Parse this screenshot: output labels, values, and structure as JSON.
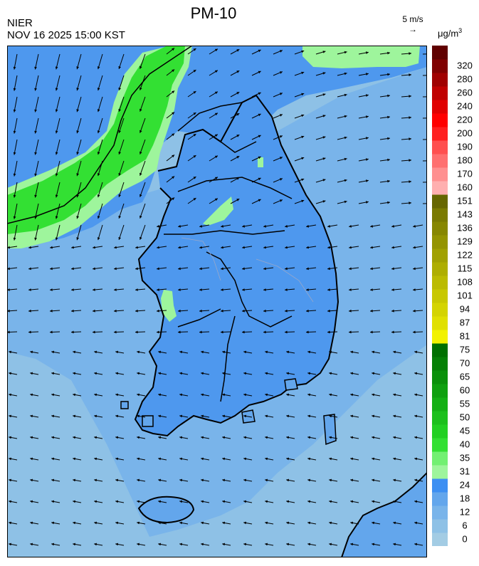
{
  "header": {
    "title": "PM-10",
    "agency": "NIER",
    "datetime": "NOV 16 2025 15:00 KST",
    "wind_scale_label": "5 m/s",
    "wind_scale_icon": "right-arrow-icon",
    "unit_base": "μg/m",
    "unit_exp": "3"
  },
  "legend": {
    "bins": [
      {
        "label": "0",
        "color": "#a3cce4"
      },
      {
        "label": "6",
        "color": "#8ec1e6"
      },
      {
        "label": "12",
        "color": "#79b4ea"
      },
      {
        "label": "18",
        "color": "#63a6ec"
      },
      {
        "label": "24",
        "color": "#3d8ff2"
      },
      {
        "label": "31",
        "color": "#9ef59c"
      },
      {
        "label": "35",
        "color": "#72f072"
      },
      {
        "label": "40",
        "color": "#33e033"
      },
      {
        "label": "45",
        "color": "#22d022"
      },
      {
        "label": "50",
        "color": "#1cc01c"
      },
      {
        "label": "55",
        "color": "#14b014"
      },
      {
        "label": "60",
        "color": "#0fa00f"
      },
      {
        "label": "65",
        "color": "#0a900a"
      },
      {
        "label": "70",
        "color": "#058005"
      },
      {
        "label": "75",
        "color": "#007000"
      },
      {
        "label": "81",
        "color": "#f2f200"
      },
      {
        "label": "87",
        "color": "#e0e000"
      },
      {
        "label": "94",
        "color": "#d4d400"
      },
      {
        "label": "101",
        "color": "#c8c800"
      },
      {
        "label": "108",
        "color": "#bbbb00"
      },
      {
        "label": "115",
        "color": "#aeae00"
      },
      {
        "label": "122",
        "color": "#a1a100"
      },
      {
        "label": "129",
        "color": "#949400"
      },
      {
        "label": "136",
        "color": "#878700"
      },
      {
        "label": "143",
        "color": "#7a7a00"
      },
      {
        "label": "151",
        "color": "#666600"
      },
      {
        "label": "160",
        "color": "#ffb0b0"
      },
      {
        "label": "170",
        "color": "#ff9090"
      },
      {
        "label": "180",
        "color": "#ff7070"
      },
      {
        "label": "190",
        "color": "#ff5050"
      },
      {
        "label": "200",
        "color": "#ff2020"
      },
      {
        "label": "220",
        "color": "#ff0000"
      },
      {
        "label": "240",
        "color": "#e00000"
      },
      {
        "label": "260",
        "color": "#c00000"
      },
      {
        "label": "280",
        "color": "#a00000"
      },
      {
        "label": "320",
        "color": "#800000"
      },
      {
        "label": "",
        "color": "#600000"
      }
    ]
  },
  "map": {
    "sea_color": "#8ec1e6",
    "land_color": "#4e98ee",
    "high_pm_color": "#33e033",
    "moderate_pm_color": "#9ef59c",
    "border_color": "#000000",
    "arrow_color": "#000000"
  }
}
